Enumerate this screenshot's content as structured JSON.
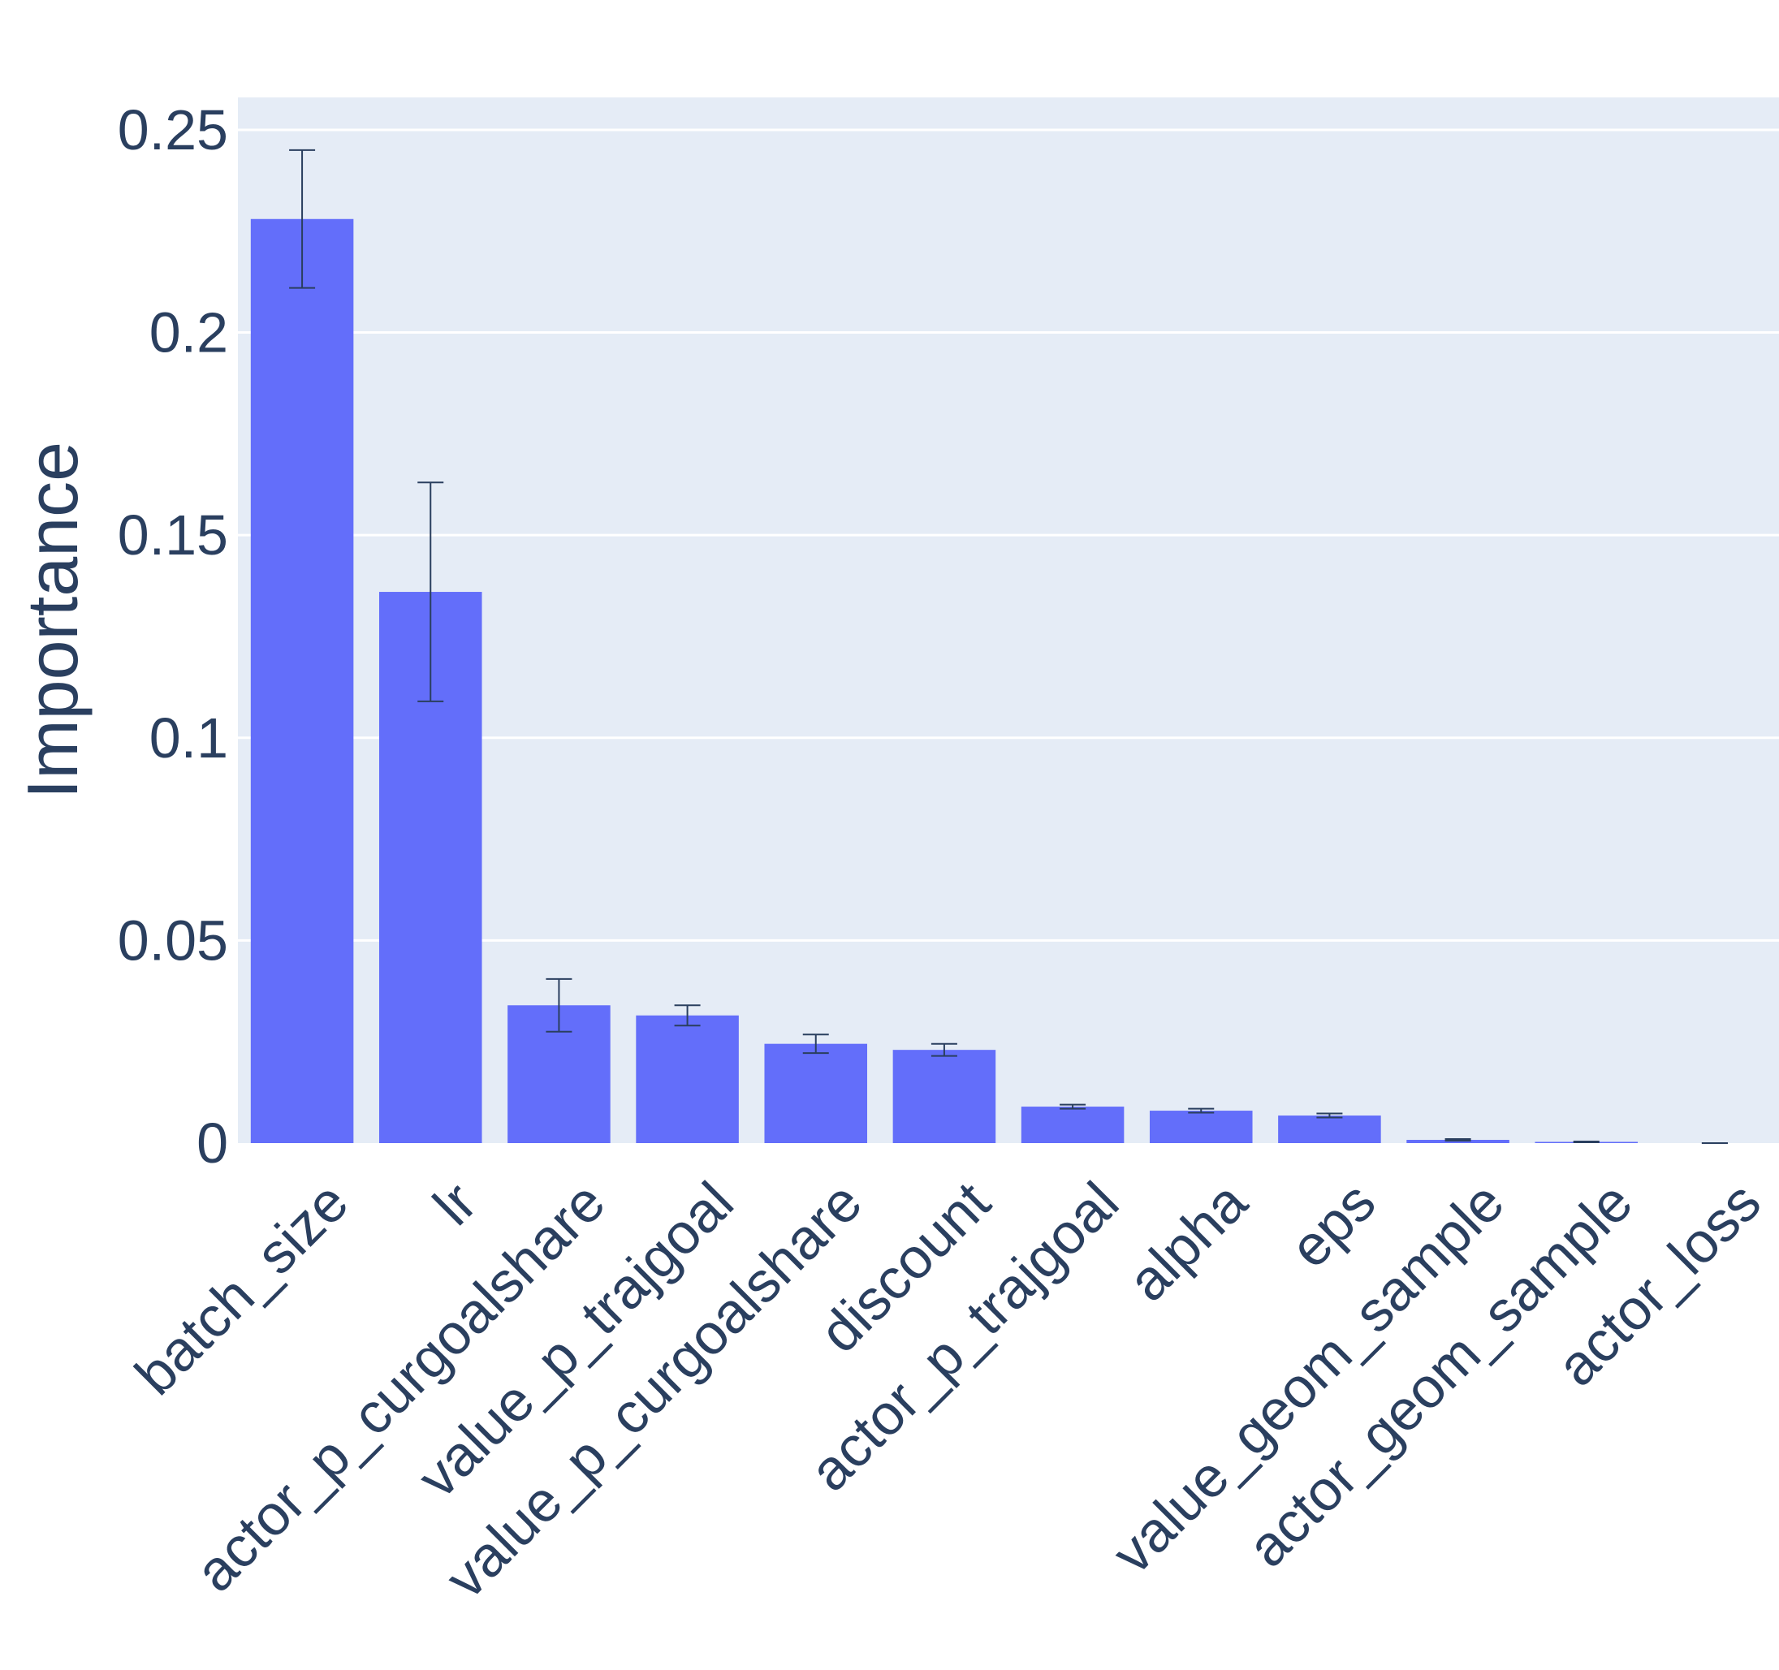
{
  "chart_data": {
    "type": "bar",
    "title": "",
    "xlabel": "",
    "ylabel": "Importance",
    "ylim": [
      0,
      0.258
    ],
    "yticks": [
      0,
      0.05,
      0.1,
      0.15,
      0.2,
      0.25
    ],
    "ytick_labels": [
      "0",
      "0.05",
      "0.1",
      "0.15",
      "0.2",
      "0.25"
    ],
    "grid": true,
    "legend": false,
    "categories": [
      "batch_size",
      "lr",
      "actor_p_curgoalshare",
      "value_p_trajgoal",
      "value_p_curgoalshare",
      "discount",
      "actor_p_trajgoal",
      "alpha",
      "eps",
      "value_geom_sample",
      "actor_geom_sample",
      "actor_loss"
    ],
    "values": [
      0.228,
      0.136,
      0.034,
      0.0315,
      0.0245,
      0.023,
      0.009,
      0.008,
      0.0068,
      0.0008,
      0.0003,
      0.0
    ],
    "error_low": [
      0.211,
      0.109,
      0.0275,
      0.029,
      0.0222,
      0.0215,
      0.0085,
      0.0075,
      0.0063,
      0.0006,
      0.0002,
      0.0
    ],
    "error_high": [
      0.245,
      0.163,
      0.0405,
      0.034,
      0.0268,
      0.0245,
      0.0095,
      0.0085,
      0.0073,
      0.001,
      0.0004,
      0.0
    ],
    "colors": {
      "bar": "#636efa",
      "plot_bg": "#e5ecf6",
      "grid": "#ffffff",
      "error_bar": "#2a3f5f",
      "text": "#2a3f5f"
    }
  }
}
